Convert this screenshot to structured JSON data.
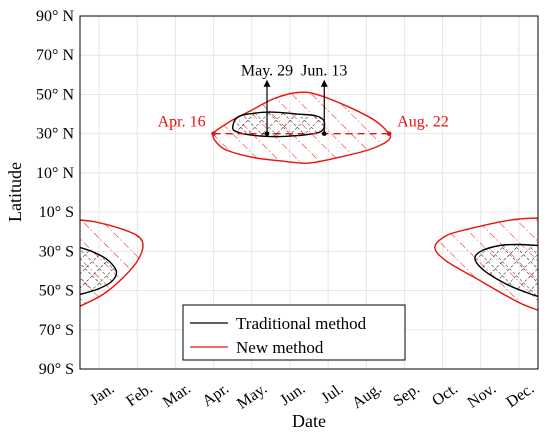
{
  "chart_data": {
    "type": "area",
    "xlabel": "Date",
    "ylabel": "Latitude",
    "x_ticks": [
      "Jan.",
      "Feb.",
      "Mar.",
      "Apr.",
      "May.",
      "Jun.",
      "Jul.",
      "Aug.",
      "Sep.",
      "Oct.",
      "Nov.",
      "Dec."
    ],
    "y_ticks": [
      "90° N",
      "70° N",
      "50° N",
      "30° N",
      "10° N",
      "10° S",
      "30° S",
      "50° S",
      "70° S",
      "90° S"
    ],
    "xlim": [
      0,
      12
    ],
    "ylim": [
      -90,
      90
    ],
    "grid": true,
    "legend_position": "bottom-center",
    "series": [
      {
        "name": "Traditional method",
        "color": "#000000",
        "hatch": "cross",
        "regions": [
          [
            [
              4.0,
              33
            ],
            [
              4.1,
              38
            ],
            [
              4.4,
              40
            ],
            [
              5.0,
              41
            ],
            [
              5.7,
              40
            ],
            [
              6.2,
              39
            ],
            [
              6.4,
              36
            ],
            [
              6.3,
              31
            ],
            [
              5.7,
              29
            ],
            [
              5.0,
              28.5
            ],
            [
              4.4,
              29.5
            ],
            [
              4.1,
              31
            ]
          ],
          [
            [
              0.0,
              -28
            ],
            [
              0.3,
              -30
            ],
            [
              0.7,
              -34
            ],
            [
              0.95,
              -40
            ],
            [
              0.85,
              -45
            ],
            [
              0.5,
              -49
            ],
            [
              0.0,
              -52
            ]
          ],
          [
            [
              12.0,
              -27
            ],
            [
              11.5,
              -26.5
            ],
            [
              11.0,
              -27
            ],
            [
              10.5,
              -30
            ],
            [
              10.35,
              -34
            ],
            [
              10.6,
              -40
            ],
            [
              11.2,
              -47
            ],
            [
              11.7,
              -51
            ],
            [
              12.0,
              -53
            ]
          ]
        ]
      },
      {
        "name": "New method",
        "color": "#e8120c",
        "hatch": "diagonal",
        "regions": [
          [
            [
              3.5,
              30
            ],
            [
              3.52,
              27
            ],
            [
              3.8,
              22
            ],
            [
              4.5,
              18
            ],
            [
              5.3,
              16
            ],
            [
              6.0,
              15
            ],
            [
              6.8,
              18
            ],
            [
              7.6,
              22
            ],
            [
              8.1,
              27
            ],
            [
              8.05,
              31
            ],
            [
              7.7,
              37
            ],
            [
              7.0,
              44
            ],
            [
              6.2,
              50
            ],
            [
              5.7,
              51
            ],
            [
              5.1,
              48
            ],
            [
              4.5,
              42
            ],
            [
              4.0,
              37
            ],
            [
              3.6,
              32
            ]
          ],
          [
            [
              0.0,
              -14
            ],
            [
              0.4,
              -15
            ],
            [
              1.0,
              -18
            ],
            [
              1.5,
              -22
            ],
            [
              1.65,
              -27
            ],
            [
              1.5,
              -35
            ],
            [
              1.1,
              -44
            ],
            [
              0.6,
              -52
            ],
            [
              0.0,
              -58
            ]
          ],
          [
            [
              12.0,
              -13
            ],
            [
              11.5,
              -13.5
            ],
            [
              11.0,
              -15
            ],
            [
              10.2,
              -18.5
            ],
            [
              9.6,
              -22
            ],
            [
              9.3,
              -28
            ],
            [
              9.6,
              -35
            ],
            [
              10.4,
              -44
            ],
            [
              11.2,
              -53
            ],
            [
              11.6,
              -57
            ],
            [
              12.0,
              -60
            ]
          ]
        ]
      }
    ],
    "reference_line": {
      "color": "#e8120c",
      "y": 30,
      "x_start": 3.5,
      "x_end": 8.1,
      "style": "dashed"
    },
    "annotations": [
      {
        "text": "Apr. 16",
        "color": "#e8120c",
        "x": 3.5,
        "y": 30,
        "kind": "label-left"
      },
      {
        "text": "Aug. 22",
        "color": "#e8120c",
        "x": 8.1,
        "y": 30,
        "kind": "label-right"
      },
      {
        "text": "May. 29",
        "color": "#000000",
        "x": 4.9,
        "y": 30,
        "arrow_to_y": 57,
        "kind": "arrow-up-label"
      },
      {
        "text": "Jun. 13",
        "color": "#000000",
        "x": 6.4,
        "y": 30,
        "arrow_to_y": 57,
        "kind": "arrow-up-label"
      }
    ]
  }
}
